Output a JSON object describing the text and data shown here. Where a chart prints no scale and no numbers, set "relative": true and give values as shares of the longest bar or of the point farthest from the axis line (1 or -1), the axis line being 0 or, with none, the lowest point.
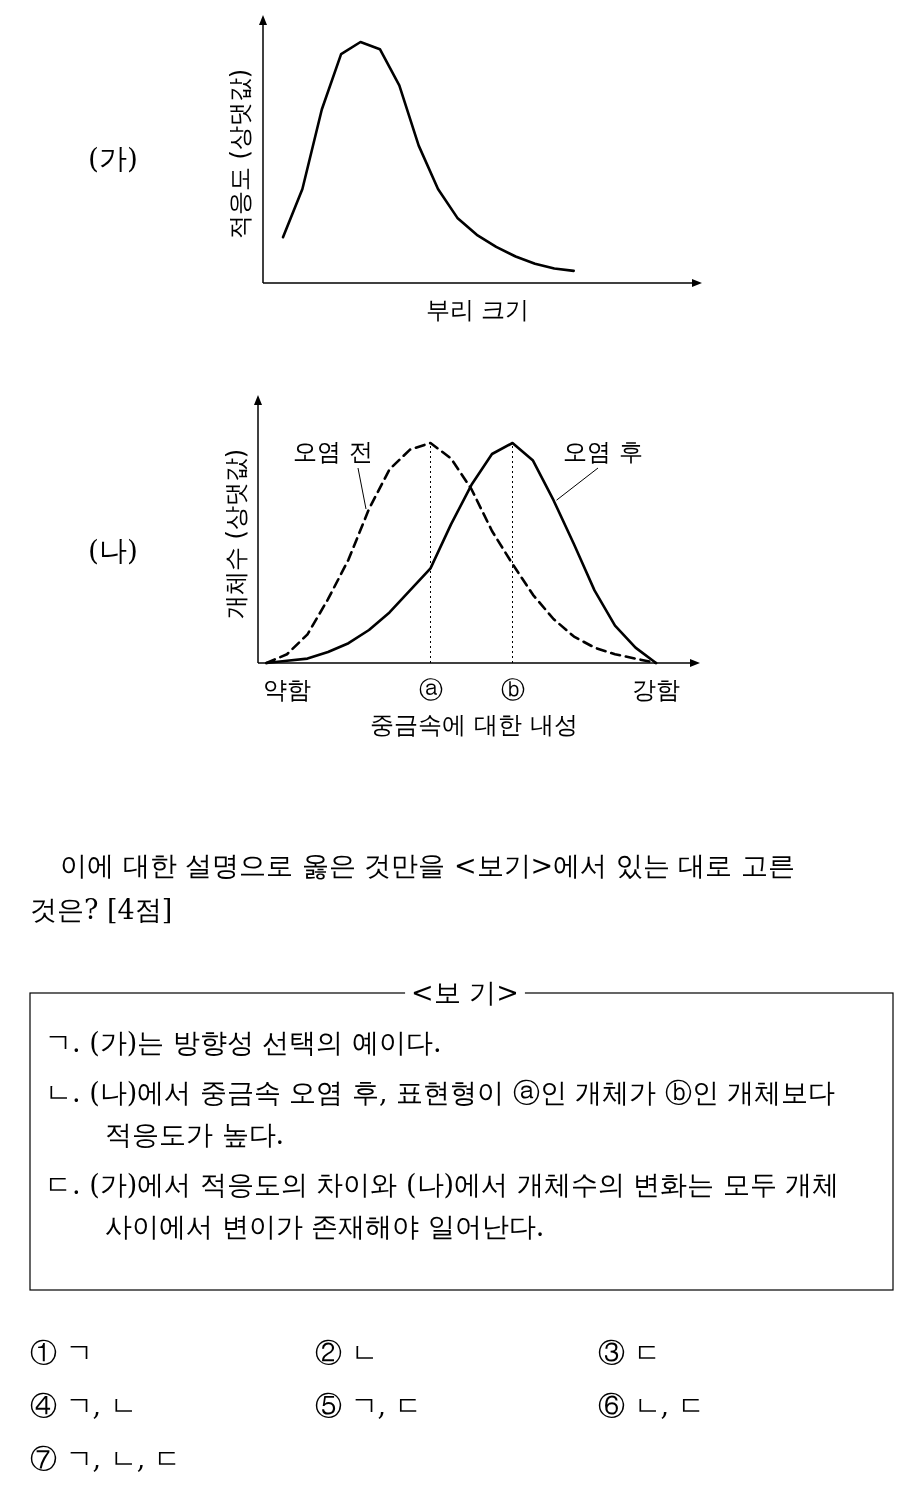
{
  "chart_data": [
    {
      "type": "line",
      "relative": true,
      "ylabel": "적응도 (상댓값)",
      "xlabel": "부리 크기",
      "annotations": [
        "(가)"
      ],
      "categories": [
        null,
        null,
        null,
        null,
        null,
        null,
        null,
        null,
        null,
        null,
        null,
        null,
        null,
        null,
        null,
        null,
        null,
        null,
        null,
        null,
        null,
        null
      ],
      "series": [
        {
          "color": "#000000",
          "line_style": "solid",
          "values": [
            0.19,
            0.39,
            0.72,
            0.95,
            1.0,
            0.97,
            0.82,
            0.57,
            0.39,
            0.27,
            0.2,
            0.15,
            0.11,
            0.08,
            0.06,
            0.05,
            null,
            null,
            null,
            null,
            null,
            null
          ]
        }
      ]
    },
    {
      "type": "line",
      "relative": true,
      "ylabel": "개체수 (상댓값)",
      "xlabel": "중금속에 대한 내성",
      "annotations": [
        "(나)"
      ],
      "categories": [
        null,
        "약함",
        null,
        null,
        null,
        null,
        null,
        null,
        "ⓐ",
        null,
        null,
        null,
        "ⓑ",
        null,
        null,
        null,
        null,
        null,
        null,
        "강함",
        null
      ],
      "ref_lines": [
        {
          "axis": "x",
          "value": "ⓐ",
          "line_style": "dotted"
        },
        {
          "axis": "x",
          "value": "ⓑ",
          "line_style": "dotted"
        }
      ],
      "series": [
        {
          "name": "오염 전",
          "color": "#000000",
          "line_style": "dashed",
          "values": [
            0.0,
            0.04,
            0.13,
            0.29,
            0.47,
            0.7,
            0.88,
            0.97,
            1.0,
            0.93,
            0.79,
            0.6,
            0.45,
            0.31,
            0.2,
            0.12,
            0.07,
            0.04,
            0.02,
            0.0,
            null
          ]
        },
        {
          "name": "오염 후",
          "color": "#000000",
          "line_style": "solid",
          "values": [
            0.0,
            0.01,
            0.02,
            0.05,
            0.09,
            0.15,
            0.23,
            0.33,
            0.43,
            0.63,
            0.81,
            0.95,
            1.0,
            0.92,
            0.74,
            0.54,
            0.33,
            0.17,
            0.07,
            0.0,
            null
          ]
        }
      ]
    },
    {
      "type": "other",
      "annotations": [
        "이에 대한 설명으로 옳은 것만을 <보기>에서 있는 대로 고른 것은? [4점]",
        "<보 기>",
        "ㄱ. (가)는 방향성 선택의 예이다.",
        "ㄴ. (나)에서 중금속 오염 후, 표현형이 ⓐ인 개체가 ⓑ인 개체보다 적응도가 높다.",
        "ㄷ. (가)에서 적응도의 차이와 (나)에서 개체수의 변화는 모두 개체 사이에서 변이가 존재해야 일어난다.",
        "① ㄱ",
        "② ㄴ",
        "③ ㄷ",
        "④ ㄱ, ㄴ",
        "⑤ ㄱ, ㄷ",
        "⑥ ㄴ, ㄷ",
        "⑦ ㄱ, ㄴ, ㄷ"
      ]
    }
  ]
}
